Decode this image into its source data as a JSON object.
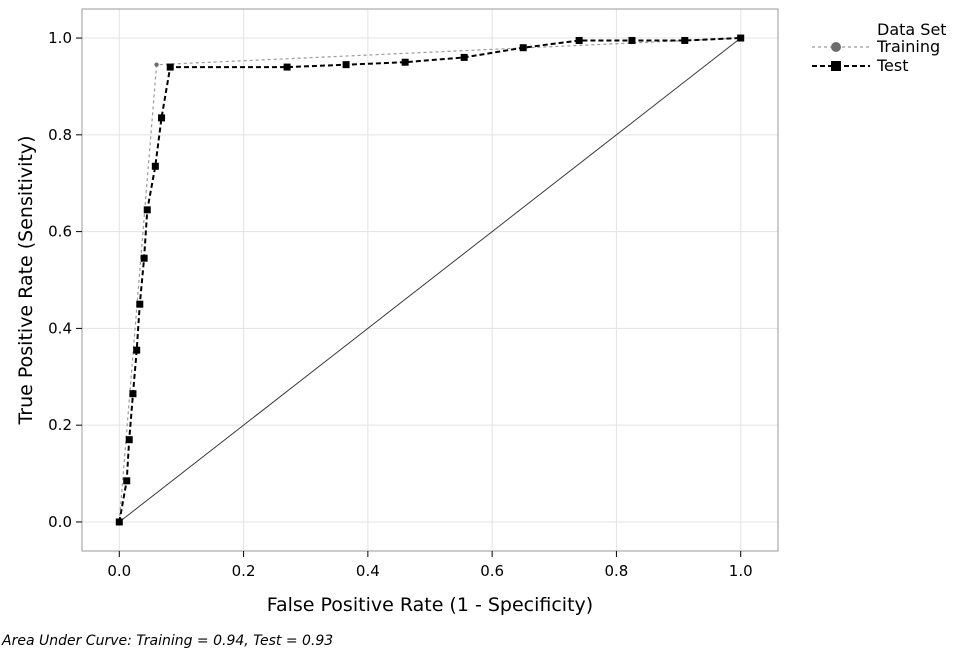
{
  "chart_data": {
    "type": "line",
    "xlabel": "False Positive Rate (1 - Specificity)",
    "ylabel": "True Positive Rate (Sensitivity)",
    "xlim": [
      -0.06,
      1.06
    ],
    "ylim": [
      -0.06,
      1.06
    ],
    "x_ticks": [
      "0.0",
      "0.2",
      "0.4",
      "0.6",
      "0.8",
      "1.0"
    ],
    "y_ticks": [
      "0.0",
      "0.2",
      "0.4",
      "0.6",
      "0.8",
      "1.0"
    ],
    "grid": true,
    "legend": {
      "title": "Data Set",
      "placement": "top-right outside"
    },
    "footnote": "Area Under Curve: Training = 0.94, Test = 0.93",
    "reference_line": {
      "x": [
        0,
        1
      ],
      "y": [
        0,
        1
      ]
    },
    "series": [
      {
        "name": "Training",
        "marker": "circle",
        "line": "dotted",
        "color": "#9a9a9a",
        "marker_color": "#6e6e6e",
        "x": [
          0.0,
          0.06,
          1.0
        ],
        "y": [
          0.0,
          0.945,
          1.0
        ]
      },
      {
        "name": "Test",
        "marker": "square",
        "line": "dashed",
        "color": "#000000",
        "marker_color": "#000000",
        "x": [
          0.0,
          0.012,
          0.016,
          0.022,
          0.028,
          0.033,
          0.04,
          0.045,
          0.058,
          0.068,
          0.082,
          0.27,
          0.365,
          0.46,
          0.555,
          0.65,
          0.74,
          0.825,
          0.91,
          1.0
        ],
        "y": [
          0.0,
          0.085,
          0.17,
          0.265,
          0.355,
          0.45,
          0.545,
          0.645,
          0.735,
          0.835,
          0.94,
          0.94,
          0.945,
          0.95,
          0.96,
          0.98,
          0.995,
          0.995,
          0.995,
          1.0
        ]
      }
    ]
  }
}
